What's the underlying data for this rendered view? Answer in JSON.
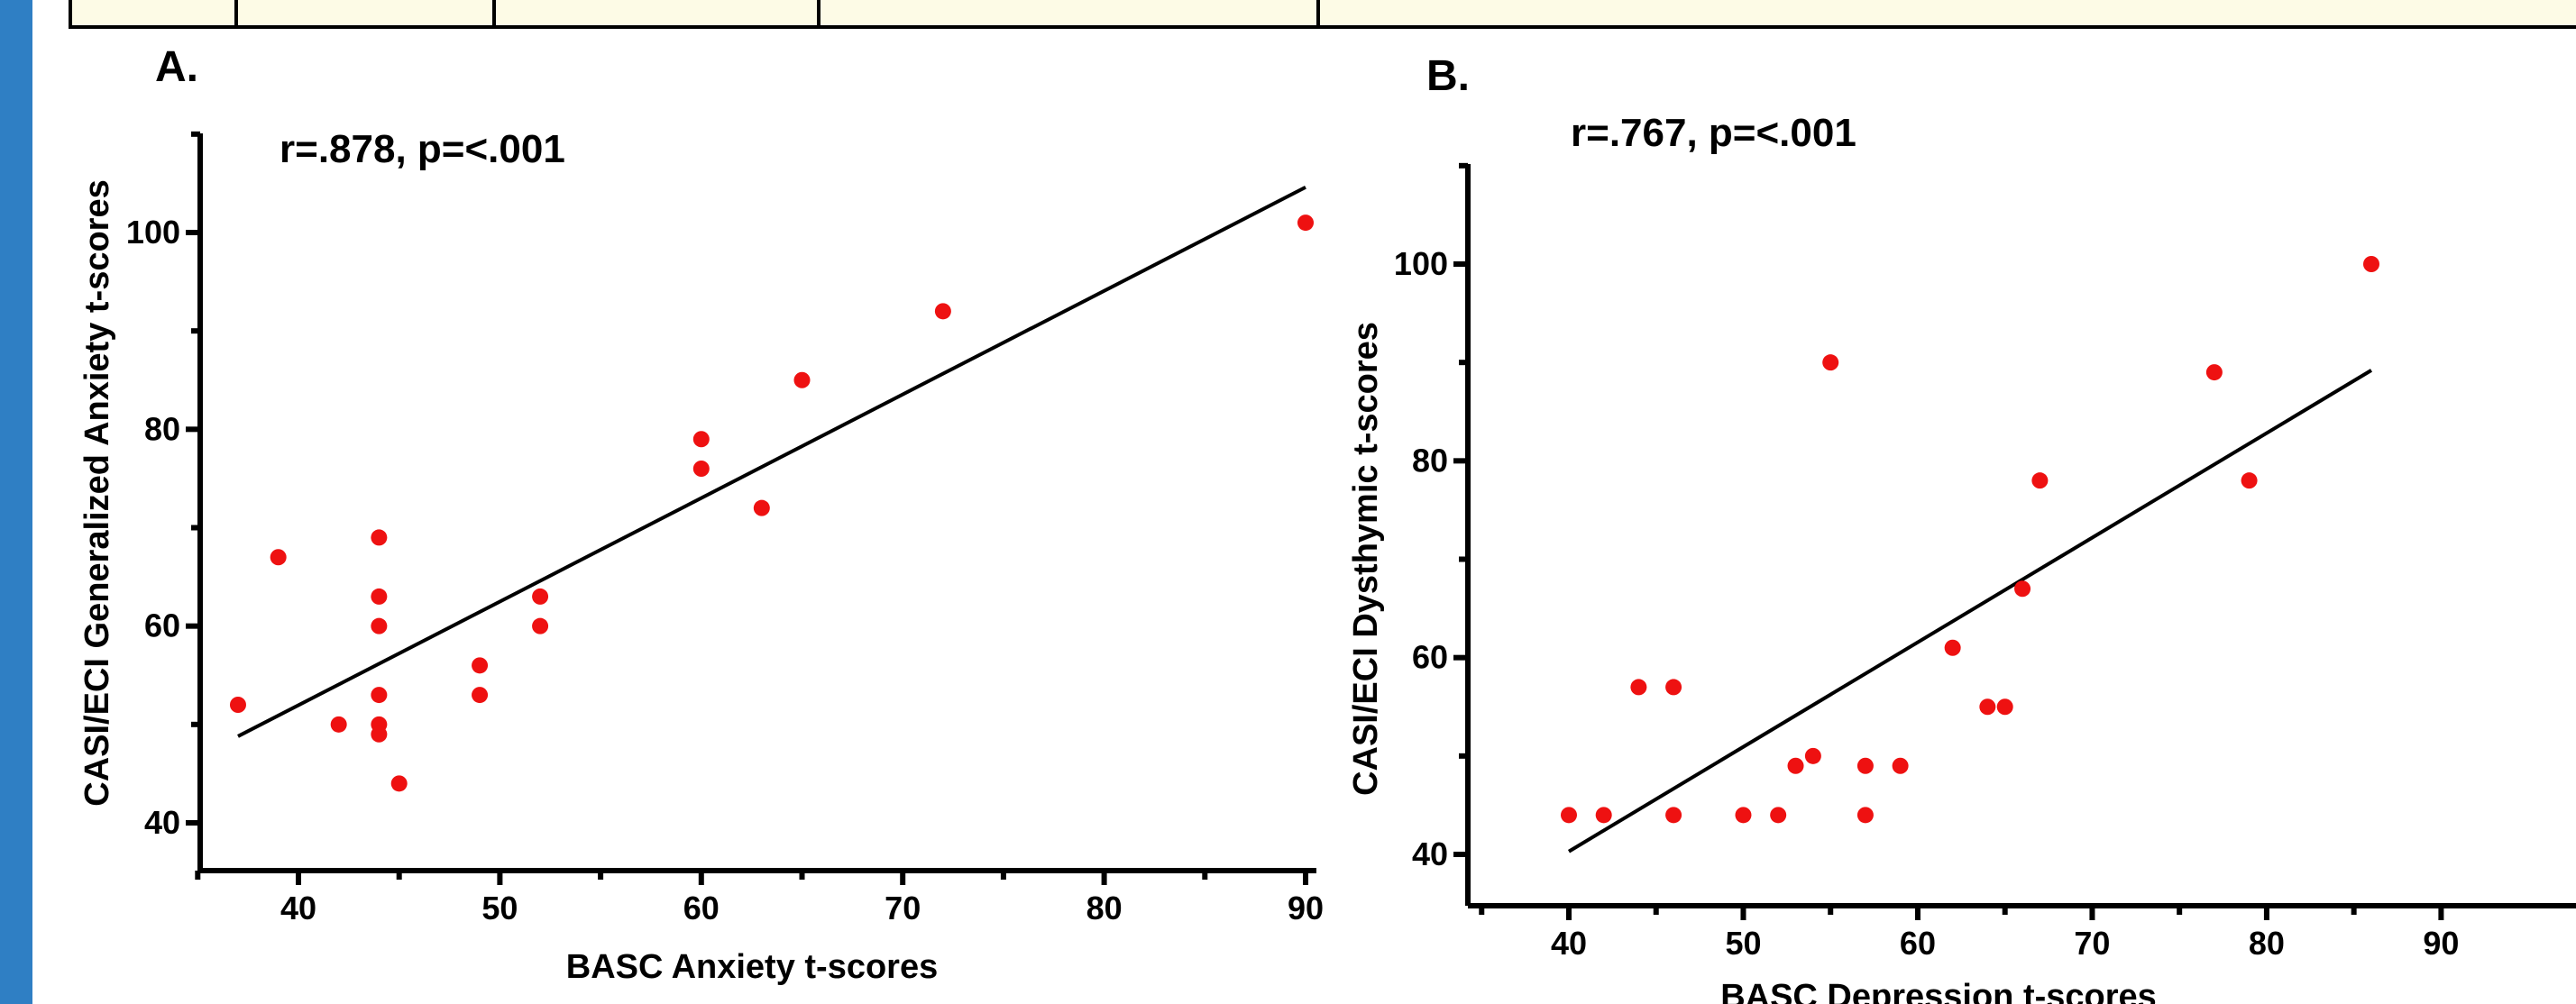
{
  "colors": {
    "accent_bar": "#2f7fc4",
    "point": "#ee1111",
    "table_fill": "#fdfbe6"
  },
  "chart_data": [
    {
      "type": "scatter",
      "panel_label": "A.",
      "annotation": "r=.878, p=<.001",
      "xlabel": "BASC Anxiety t-scores",
      "ylabel": "CASI/ECI Generalized Anxiety t-scores",
      "xlim": [
        35,
        90
      ],
      "ylim": [
        36,
        110
      ],
      "xticks": [
        40,
        50,
        60,
        70,
        80,
        90
      ],
      "yticks": [
        40,
        60,
        80,
        100
      ],
      "points": [
        [
          37,
          52
        ],
        [
          39,
          67
        ],
        [
          42,
          50
        ],
        [
          44,
          69
        ],
        [
          44,
          63
        ],
        [
          44,
          60
        ],
        [
          44,
          53
        ],
        [
          44,
          50
        ],
        [
          44,
          49
        ],
        [
          45,
          44
        ],
        [
          49,
          56
        ],
        [
          49,
          53
        ],
        [
          52,
          63
        ],
        [
          52,
          60
        ],
        [
          60,
          79
        ],
        [
          60,
          76
        ],
        [
          63,
          72
        ],
        [
          65,
          85
        ],
        [
          72,
          92
        ],
        [
          90,
          101
        ]
      ],
      "fit_line": [
        [
          37,
          48.8
        ],
        [
          90,
          104.6
        ]
      ]
    },
    {
      "type": "scatter",
      "panel_label": "B.",
      "annotation": "r=.767, p=<.001",
      "xlabel": "BASC Depression t-scores",
      "ylabel": "CASI/ECI Dysthymic t-scores",
      "xlim": [
        35,
        90
      ],
      "ylim": [
        35,
        110
      ],
      "xticks": [
        40,
        50,
        60,
        70,
        80,
        90
      ],
      "yticks": [
        40,
        60,
        80,
        100
      ],
      "points": [
        [
          40,
          44
        ],
        [
          42,
          44
        ],
        [
          44,
          57
        ],
        [
          46,
          57
        ],
        [
          46,
          44
        ],
        [
          50,
          44
        ],
        [
          52,
          44
        ],
        [
          53,
          49
        ],
        [
          54,
          50
        ],
        [
          55,
          90
        ],
        [
          57,
          49
        ],
        [
          57,
          44
        ],
        [
          59,
          49
        ],
        [
          62,
          61
        ],
        [
          64,
          55
        ],
        [
          65,
          55
        ],
        [
          66,
          67
        ],
        [
          67,
          78
        ],
        [
          77,
          89
        ],
        [
          79,
          78
        ],
        [
          86,
          100
        ]
      ],
      "fit_line": [
        [
          40,
          40.3
        ],
        [
          86,
          89.2
        ]
      ]
    }
  ]
}
